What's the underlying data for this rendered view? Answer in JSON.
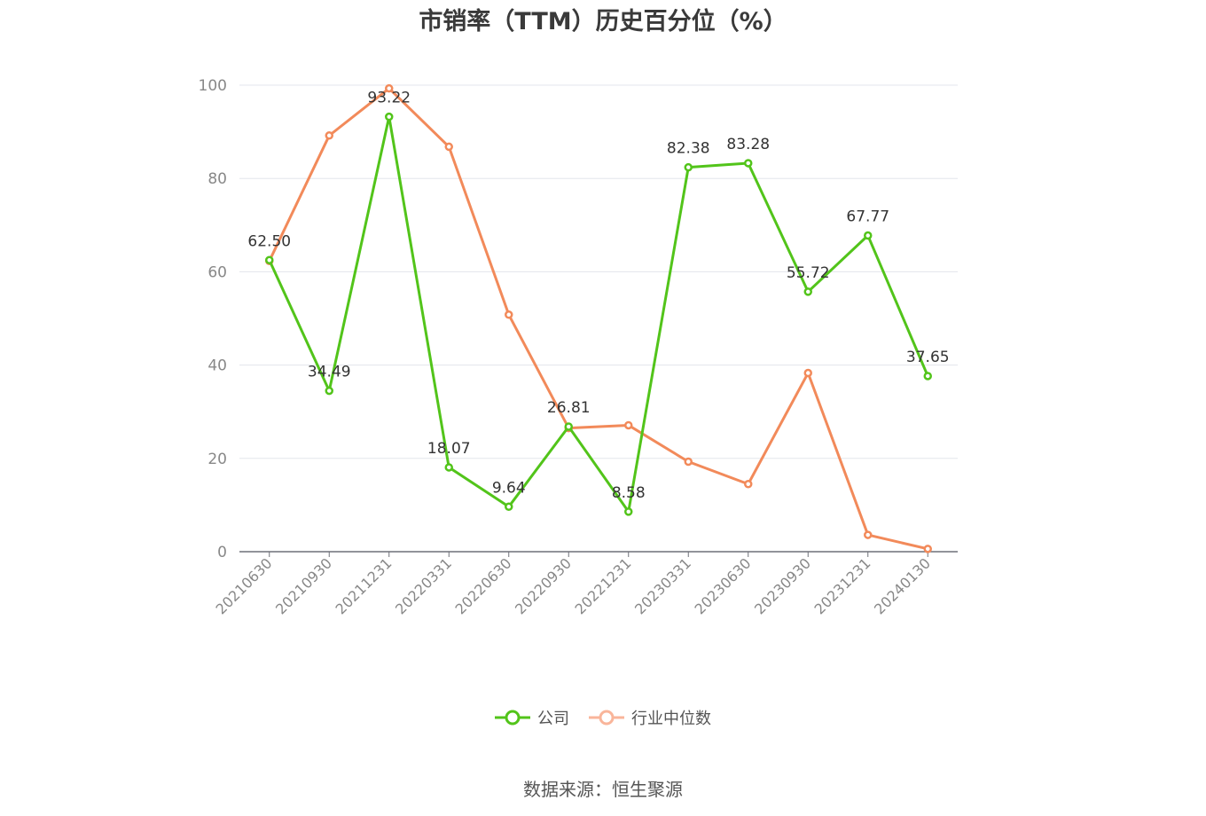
{
  "chart_data": {
    "type": "line",
    "title": "市销率（TTM）历史百分位（%）",
    "xlabel": "",
    "ylabel": "",
    "ylim": [
      0,
      100
    ],
    "yticks": [
      0,
      20,
      40,
      60,
      80,
      100
    ],
    "grid": true,
    "legend_position": "bottom",
    "categories": [
      "20210630",
      "20210930",
      "20211231",
      "20220331",
      "20220630",
      "20220930",
      "20221231",
      "20230331",
      "20230630",
      "20230930",
      "20231231",
      "20240130"
    ],
    "series": [
      {
        "name": "公司",
        "color": "#52c41a",
        "values": [
          62.5,
          34.49,
          93.22,
          18.07,
          9.64,
          26.81,
          8.58,
          82.38,
          83.28,
          55.72,
          67.77,
          37.65
        ],
        "labels": [
          "62.50",
          "34.49",
          "93.22",
          "18.07",
          "9.64",
          "26.81",
          "8.58",
          "82.38",
          "83.28",
          "55.72",
          "67.77",
          "37.65"
        ]
      },
      {
        "name": "行业中位数",
        "color": "#f28a5a",
        "values": [
          62.3,
          89.2,
          99.3,
          86.8,
          50.8,
          26.5,
          27.1,
          19.3,
          14.5,
          38.3,
          3.6,
          0.6
        ]
      }
    ]
  },
  "source": "数据来源：恒生聚源"
}
